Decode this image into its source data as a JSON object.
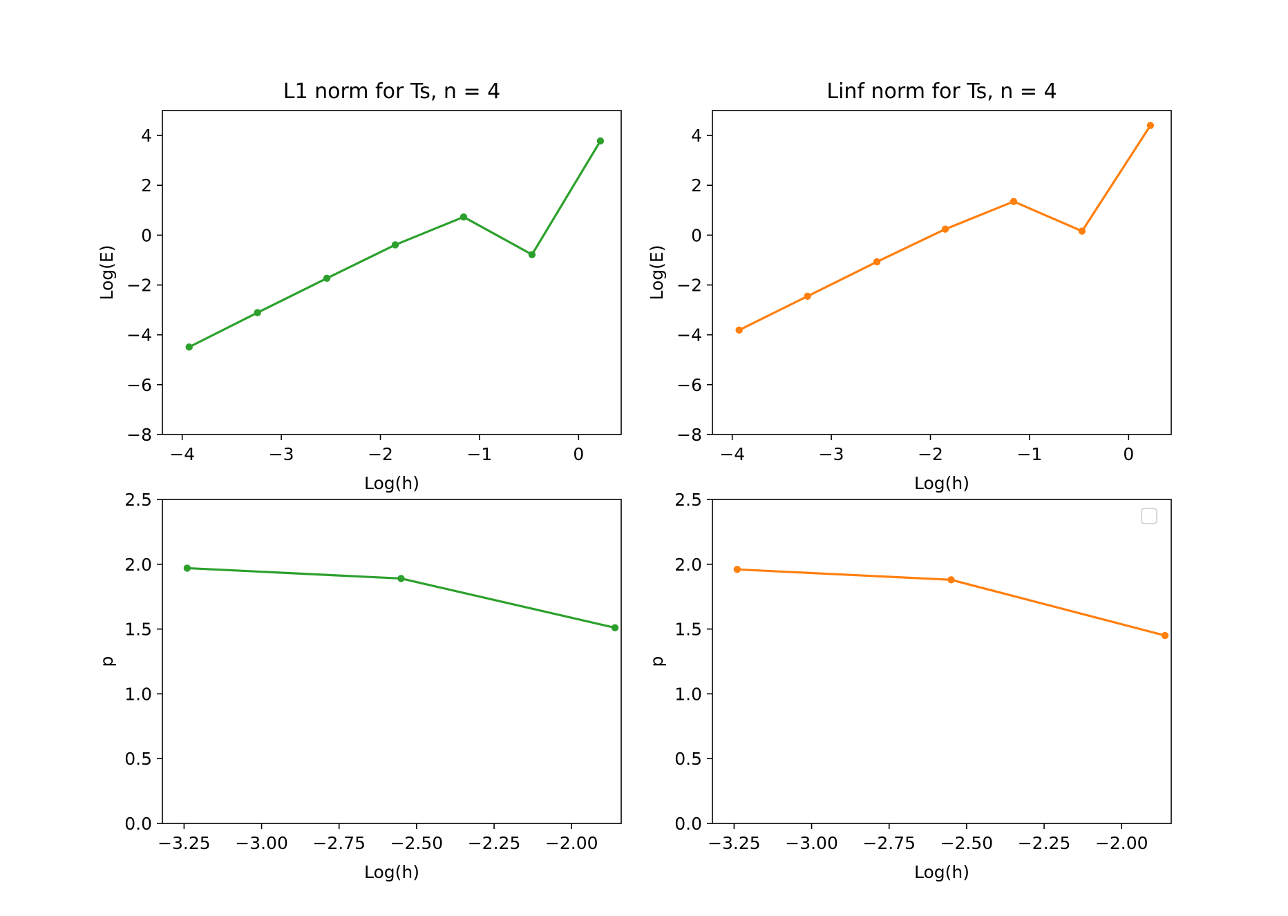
{
  "chart_data": [
    {
      "type": "line",
      "title": "L1 norm for Ts, n = 4",
      "xlabel": "Log(h)",
      "ylabel": "Log(E)",
      "xlim": [
        -4.2,
        0.43
      ],
      "ylim": [
        -8,
        5
      ],
      "xticks": [
        -4,
        -3,
        -2,
        -1,
        0
      ],
      "yticks": [
        -8,
        -6,
        -4,
        -2,
        0,
        2,
        4
      ],
      "xtick_labels": [
        "−4",
        "−3",
        "−2",
        "−1",
        "0"
      ],
      "ytick_labels": [
        "−8",
        "−6",
        "−4",
        "−2",
        "0",
        "2",
        "4"
      ],
      "color": "#2ca02c",
      "grid": false,
      "series": [
        {
          "x": [
            -3.93,
            -3.24,
            -2.54,
            -1.85,
            -1.16,
            -0.47,
            0.22
          ],
          "y": [
            -4.49,
            -3.11,
            -1.73,
            -0.39,
            0.73,
            -0.78,
            3.78
          ]
        }
      ]
    },
    {
      "type": "line",
      "title": "Linf norm for Ts, n = 4",
      "xlabel": "Log(h)",
      "ylabel": "Log(E)",
      "xlim": [
        -4.2,
        0.43
      ],
      "ylim": [
        -8,
        5
      ],
      "xticks": [
        -4,
        -3,
        -2,
        -1,
        0
      ],
      "yticks": [
        -8,
        -6,
        -4,
        -2,
        0,
        2,
        4
      ],
      "xtick_labels": [
        "−4",
        "−3",
        "−2",
        "−1",
        "0"
      ],
      "ytick_labels": [
        "−8",
        "−6",
        "−4",
        "−2",
        "0",
        "2",
        "4"
      ],
      "color": "#ff7f0e",
      "grid": false,
      "series": [
        {
          "x": [
            -3.93,
            -3.24,
            -2.54,
            -1.85,
            -1.16,
            -0.47,
            0.22
          ],
          "y": [
            -3.81,
            -2.45,
            -1.07,
            0.24,
            1.35,
            0.16,
            4.4
          ]
        }
      ]
    },
    {
      "type": "line",
      "title": "",
      "xlabel": "Log(h)",
      "ylabel": "p",
      "xlim": [
        -3.32,
        -1.84
      ],
      "ylim": [
        0,
        2.5
      ],
      "xticks": [
        -3.25,
        -3.0,
        -2.75,
        -2.5,
        -2.25,
        -2.0
      ],
      "yticks": [
        0.0,
        0.5,
        1.0,
        1.5,
        2.0,
        2.5
      ],
      "xtick_labels": [
        "−3.25",
        "−3.00",
        "−2.75",
        "−2.50",
        "−2.25",
        "−2.00"
      ],
      "ytick_labels": [
        "0.0",
        "0.5",
        "1.0",
        "1.5",
        "2.0",
        "2.5"
      ],
      "color": "#2ca02c",
      "grid": false,
      "series": [
        {
          "x": [
            -3.24,
            -2.55,
            -1.86
          ],
          "y": [
            1.97,
            1.89,
            1.51
          ]
        }
      ]
    },
    {
      "type": "line",
      "title": "",
      "xlabel": "Log(h)",
      "ylabel": "p",
      "xlim": [
        -3.32,
        -1.84
      ],
      "ylim": [
        0,
        2.5
      ],
      "xticks": [
        -3.25,
        -3.0,
        -2.75,
        -2.5,
        -2.25,
        -2.0
      ],
      "yticks": [
        0.0,
        0.5,
        1.0,
        1.5,
        2.0,
        2.5
      ],
      "xtick_labels": [
        "−3.25",
        "−3.00",
        "−2.75",
        "−2.50",
        "−2.25",
        "−2.00"
      ],
      "ytick_labels": [
        "0.0",
        "0.5",
        "1.0",
        "1.5",
        "2.0",
        "2.5"
      ],
      "color": "#ff7f0e",
      "grid": false,
      "legend": "top-right (empty)",
      "series": [
        {
          "x": [
            -3.24,
            -2.55,
            -1.86
          ],
          "y": [
            1.96,
            1.88,
            1.45
          ]
        }
      ]
    }
  ]
}
